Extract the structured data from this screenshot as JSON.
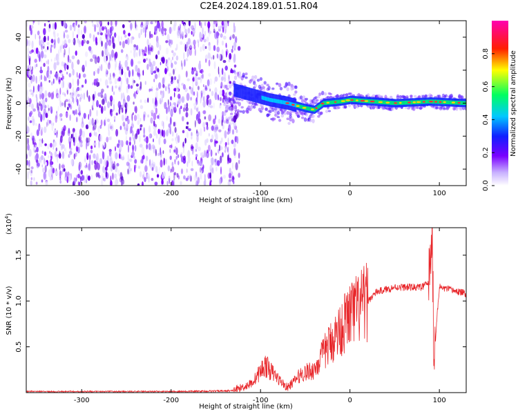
{
  "title": "C2E4.2024.189.01.51.R04",
  "colors": {
    "snr_line": "#e8262a",
    "axis": "#000000"
  },
  "chart_data": [
    {
      "type": "heatmap",
      "title": "C2E4.2024.189.01.51.R04",
      "xlabel": "Height of straight line (km)",
      "ylabel": "Frequency (Hz)",
      "xlim": [
        -362,
        130
      ],
      "ylim": [
        -50,
        50
      ],
      "x_ticks": [
        -300,
        -200,
        -100,
        0,
        100
      ],
      "y_ticks": [
        -40,
        -20,
        0,
        20,
        40
      ],
      "colorbar": {
        "label": "Normalized spectral amplitude",
        "range": [
          0,
          1
        ],
        "ticks": [
          "0.0",
          "0.2",
          "0.4",
          "0.6",
          "0.8"
        ],
        "colorscale": "rainbow (white→purple→blue→cyan→green→yellow→red→magenta)"
      },
      "description_values": {
        "noise_region_x": [
          -362,
          -130
        ],
        "signal_line_points": [
          {
            "x": -130,
            "y": 8
          },
          {
            "x": -110,
            "y": 5
          },
          {
            "x": -90,
            "y": 2
          },
          {
            "x": -70,
            "y": 0
          },
          {
            "x": -50,
            "y": -3
          },
          {
            "x": -40,
            "y": -4
          },
          {
            "x": -30,
            "y": 0
          },
          {
            "x": -10,
            "y": 1
          },
          {
            "x": 0,
            "y": 2
          },
          {
            "x": 50,
            "y": 0
          },
          {
            "x": 90,
            "y": 1
          },
          {
            "x": 130,
            "y": 0
          }
        ]
      }
    },
    {
      "type": "line",
      "xlabel": "Height of straight line (km)",
      "ylabel": "SNR (10 * v/v)",
      "y_exponent_label": "(x10",
      "y_exponent_power": "4",
      "y_exponent_close": ")",
      "xlim": [
        -362,
        130
      ],
      "ylim": [
        0,
        1.8
      ],
      "x_ticks": [
        -300,
        -200,
        -100,
        0,
        100
      ],
      "y_ticks": [
        0.5,
        1.0,
        1.5
      ],
      "y_tick_labels": [
        "0.5",
        "1.0",
        "1.5"
      ],
      "series": [
        {
          "values_trend": [
            {
              "x": -362,
              "y": 0.01
            },
            {
              "x": -200,
              "y": 0.01
            },
            {
              "x": -130,
              "y": 0.02
            },
            {
              "x": -110,
              "y": 0.1
            },
            {
              "x": -95,
              "y": 0.3
            },
            {
              "x": -80,
              "y": 0.15
            },
            {
              "x": -70,
              "y": 0.05
            },
            {
              "x": -55,
              "y": 0.2
            },
            {
              "x": -40,
              "y": 0.25
            },
            {
              "x": -25,
              "y": 0.5
            },
            {
              "x": -10,
              "y": 0.7
            },
            {
              "x": 0,
              "y": 0.85
            },
            {
              "x": 15,
              "y": 0.95
            },
            {
              "x": 30,
              "y": 1.1
            },
            {
              "x": 50,
              "y": 1.15
            },
            {
              "x": 80,
              "y": 1.15
            },
            {
              "x": 88,
              "y": 1.2
            },
            {
              "x": 92,
              "y": 1.75
            },
            {
              "x": 94,
              "y": 0.4
            },
            {
              "x": 100,
              "y": 1.15
            },
            {
              "x": 130,
              "y": 1.08
            }
          ]
        }
      ]
    }
  ]
}
